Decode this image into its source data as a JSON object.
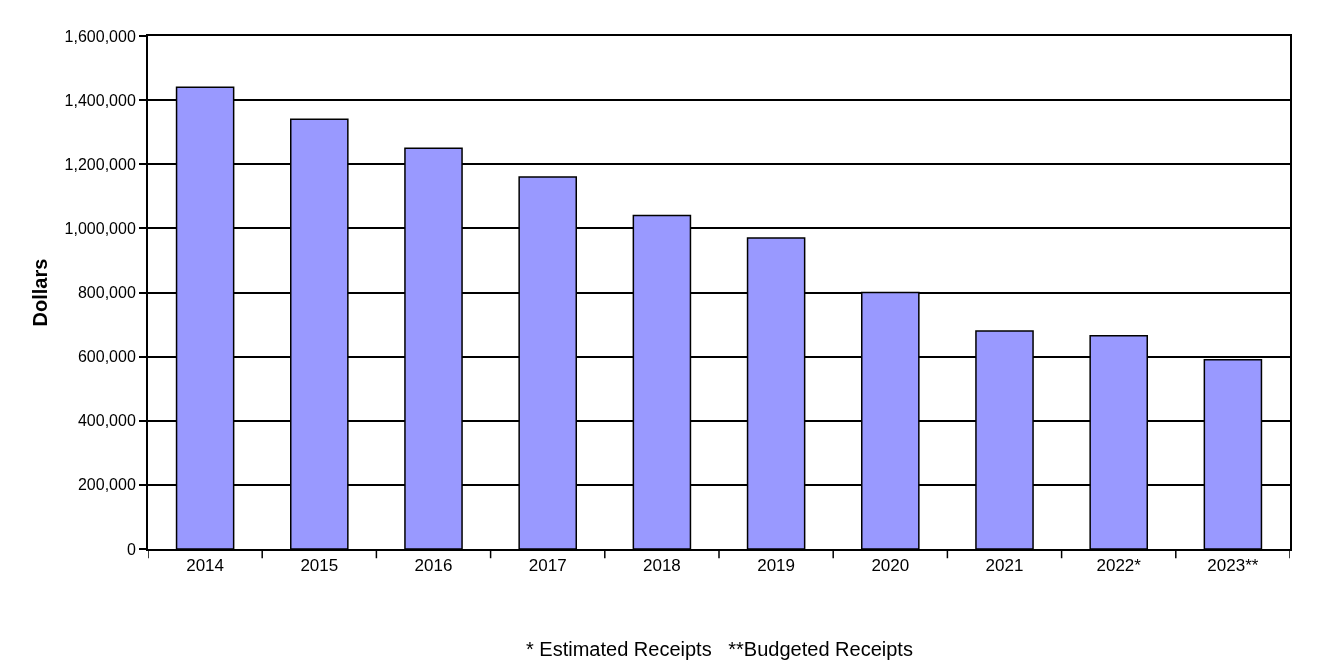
{
  "chart_data": {
    "type": "bar",
    "ylabel": "Dollars",
    "categories": [
      "2014",
      "2015",
      "2016",
      "2017",
      "2018",
      "2019",
      "2020",
      "2021",
      "2022*",
      "2023**"
    ],
    "values": [
      1440000,
      1340000,
      1250000,
      1160000,
      1040000,
      970000,
      800000,
      680000,
      665000,
      590000
    ],
    "color": "#9999ff",
    "ylim": [
      0,
      1600000
    ],
    "yticks": [
      0,
      {
        "value": 200000,
        "label": "200,000"
      },
      {
        "value": 400000,
        "label": "400,000"
      },
      {
        "value": 600000,
        "label": "600,000"
      },
      {
        "value": 800000,
        "label": "800,000"
      },
      {
        "value": 1000000,
        "label": "1,000,000"
      },
      {
        "value": 1200000,
        "label": "1,200,000"
      },
      {
        "value": 1400000,
        "label": "1,400,000"
      },
      {
        "value": 1600000,
        "label": "1,600,000"
      }
    ],
    "grid": "y",
    "annotations": [
      "* Estimated Receipts   **Budgeted Receipts"
    ]
  }
}
